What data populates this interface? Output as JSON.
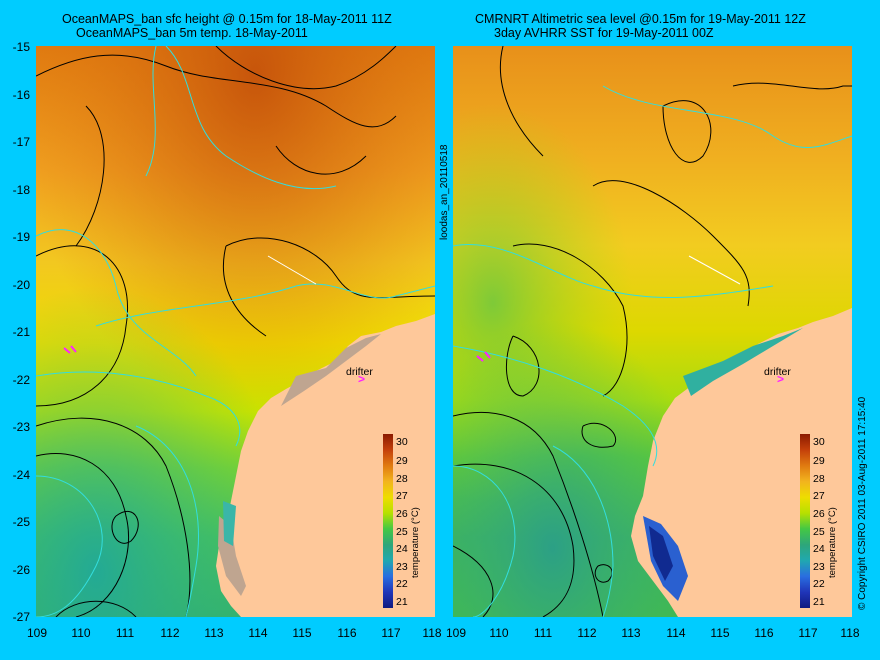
{
  "left_panel": {
    "title_line1": "OceanMAPS_ban sfc height @ 0.15m for 18-May-2011 11Z",
    "title_line2": "OceanMAPS_ban 5m temp. 18-May-2011"
  },
  "right_panel": {
    "title_line1": "CMRNRT Altimetric sea level  @0.15m  for 19-May-2011 12Z",
    "title_line2": "3day AVHRR SST for 19-May-2011 00Z"
  },
  "y_axis_labels": [
    "-15",
    "-16",
    "-17",
    "-18",
    "-19",
    "-20",
    "-21",
    "-22",
    "-23",
    "-24",
    "-25",
    "-26",
    "-27"
  ],
  "x_axis_labels": [
    "109",
    "110",
    "111",
    "112",
    "113",
    "114",
    "115",
    "116",
    "117",
    "118"
  ],
  "side_label_left": "loodas_an_20110518",
  "side_label_right": "© Copyright CSIRO 2011   03-Aug-2011 17:15:40",
  "drifter_label": "drifter",
  "colorbar": {
    "labels": [
      "30",
      "29",
      "28",
      "27",
      "26",
      "25",
      "24",
      "23",
      "22",
      "21"
    ],
    "title": "temperature (°C)",
    "colors": [
      "#8b1a00",
      "#c4400a",
      "#e07a10",
      "#f2b41e",
      "#eedd00",
      "#b7e000",
      "#44c844",
      "#2ea67a",
      "#20a8b0",
      "#2a6ee0",
      "#2035b8",
      "#101a80"
    ]
  },
  "colors": {
    "background": "#00ccff",
    "land": "#fec89a",
    "contour": "#000000",
    "cyan_contour": "#33dddd",
    "drifter": "#ff22ff"
  }
}
